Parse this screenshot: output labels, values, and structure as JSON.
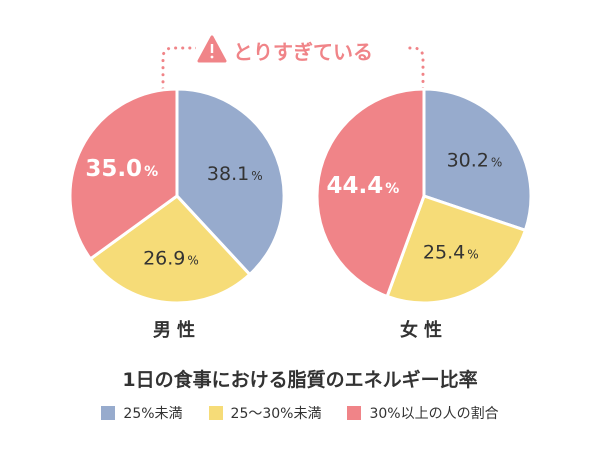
{
  "chart_data": {
    "type": "pie",
    "title": "1日の食事における脂質のエネルギー比率",
    "annotation": "とりすぎている",
    "categories": [
      "25%未満",
      "25〜30%未満",
      "30%以上の人の割合"
    ],
    "colors": [
      "#97abcd",
      "#f6dc78",
      "#f08488"
    ],
    "unit": "%",
    "series": [
      {
        "name": "男性",
        "values": [
          38.1,
          26.9,
          35.0
        ]
      },
      {
        "name": "女性",
        "values": [
          30.2,
          25.4,
          44.4
        ]
      }
    ],
    "accent_color": "#f08488"
  }
}
